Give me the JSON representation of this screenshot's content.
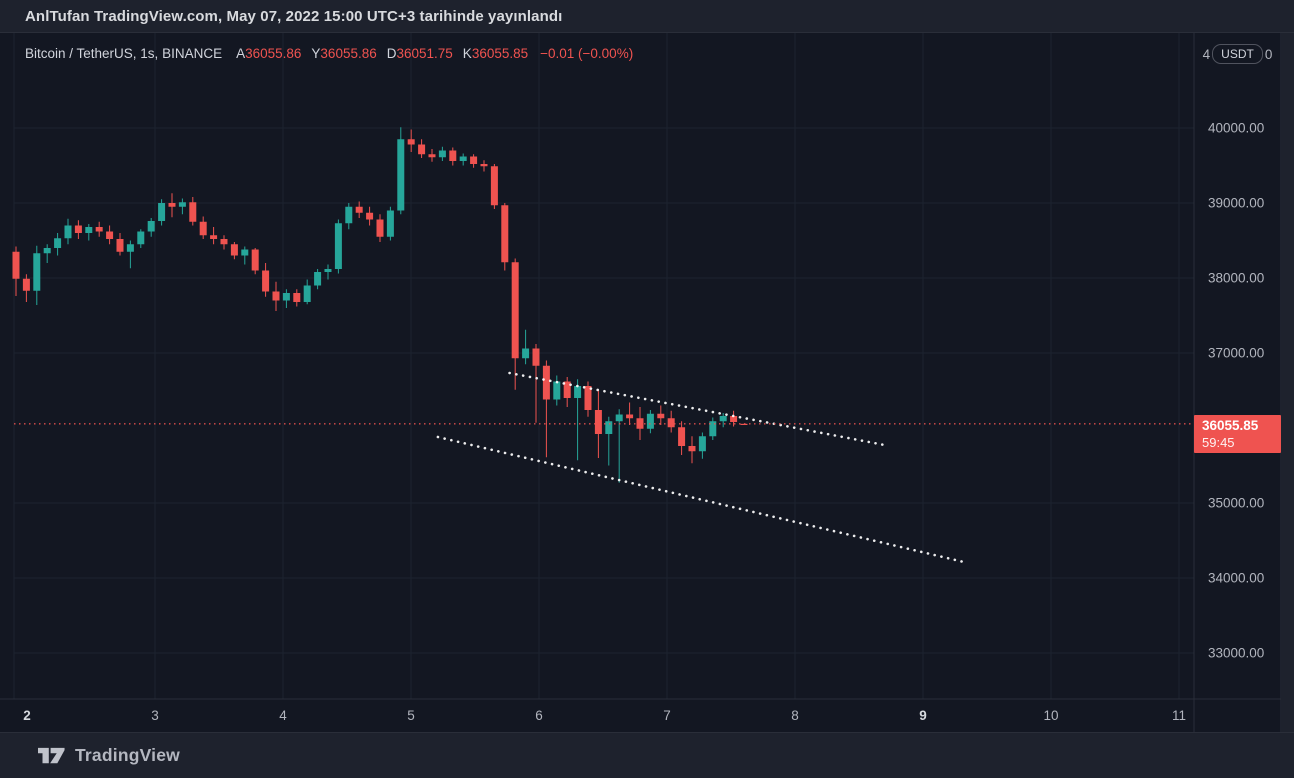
{
  "publish_bar": {
    "text": "AnlTufan TradingView.com, May 07, 2022 15:00 UTC+3 tarihinde yayınlandı"
  },
  "header": {
    "symbol": "Bitcoin / TetherUS, 1s, BINANCE",
    "ohlc": [
      {
        "label": "A",
        "value": "36055.86"
      },
      {
        "label": "Y",
        "value": "36055.86"
      },
      {
        "label": "D",
        "value": "36051.75"
      },
      {
        "label": "K",
        "value": "36055.85"
      }
    ],
    "change": "−0.01 (−0.00%)"
  },
  "price_scale": {
    "top_left_digit": "4",
    "currency_button_label": "USDT",
    "top_right_digit": "0",
    "ticks": [
      {
        "label": "40000.00",
        "price": 40000
      },
      {
        "label": "39000.00",
        "price": 39000
      },
      {
        "label": "38000.00",
        "price": 38000
      },
      {
        "label": "37000.00",
        "price": 37000
      },
      {
        "label": "35000.00",
        "price": 35000
      },
      {
        "label": "34000.00",
        "price": 34000
      },
      {
        "label": "33000.00",
        "price": 33000
      }
    ],
    "last_price_badge": {
      "price": "36055.85",
      "countdown": "59:45"
    }
  },
  "time_scale": {
    "ticks": [
      {
        "label": "2",
        "day": 2,
        "bold": true
      },
      {
        "label": "3",
        "day": 3,
        "bold": false
      },
      {
        "label": "4",
        "day": 4,
        "bold": false
      },
      {
        "label": "5",
        "day": 5,
        "bold": false
      },
      {
        "label": "6",
        "day": 6,
        "bold": false
      },
      {
        "label": "7",
        "day": 7,
        "bold": false
      },
      {
        "label": "8",
        "day": 8,
        "bold": false
      },
      {
        "label": "9",
        "day": 9,
        "bold": true
      },
      {
        "label": "10",
        "day": 10,
        "bold": false
      },
      {
        "label": "11",
        "day": 11,
        "bold": false
      }
    ]
  },
  "footer": {
    "brand": "TradingView"
  },
  "colors": {
    "up": "#26a69a",
    "down": "#ef5350",
    "badge": "#ef5350",
    "background": "#131722",
    "panel": "#1e222d",
    "grid": "#1d2330",
    "separator": "#2a2e39",
    "axis_text": "#b2b5be",
    "bright_text": "#d1d4dc",
    "trendline": "#ffffff"
  },
  "chart_data": {
    "type": "candlestick",
    "title": "Bitcoin / TetherUS, 1s, BINANCE",
    "pair": "Bitcoin / TetherUS",
    "interval": "1s",
    "exchange": "BINANCE",
    "x_axis": {
      "unit": "day of May 2022",
      "labels": [
        "2",
        "3",
        "4",
        "5",
        "6",
        "7",
        "8",
        "9",
        "10",
        "11"
      ]
    },
    "y_axis": {
      "ticks": [
        40000,
        39000,
        38000,
        37000,
        35000,
        34000,
        33000
      ],
      "visible_range": [
        32400,
        41300
      ]
    },
    "start_day": 1.914,
    "day_step": 0.08125,
    "candles": [
      [
        38350,
        38420,
        37760,
        37990
      ],
      [
        37990,
        38050,
        37680,
        37830
      ],
      [
        37830,
        38430,
        37640,
        38330
      ],
      [
        38330,
        38450,
        38200,
        38400
      ],
      [
        38400,
        38600,
        38300,
        38530
      ],
      [
        38530,
        38790,
        38450,
        38700
      ],
      [
        38700,
        38770,
        38520,
        38600
      ],
      [
        38600,
        38720,
        38500,
        38680
      ],
      [
        38680,
        38750,
        38550,
        38620
      ],
      [
        38620,
        38700,
        38450,
        38520
      ],
      [
        38520,
        38600,
        38300,
        38350
      ],
      [
        38350,
        38500,
        38130,
        38450
      ],
      [
        38450,
        38650,
        38400,
        38620
      ],
      [
        38620,
        38800,
        38550,
        38760
      ],
      [
        38760,
        39050,
        38700,
        39000
      ],
      [
        39000,
        39130,
        38810,
        38950
      ],
      [
        38950,
        39060,
        38850,
        39010
      ],
      [
        39010,
        39080,
        38700,
        38750
      ],
      [
        38750,
        38820,
        38520,
        38570
      ],
      [
        38570,
        38680,
        38450,
        38520
      ],
      [
        38520,
        38570,
        38380,
        38450
      ],
      [
        38450,
        38480,
        38250,
        38300
      ],
      [
        38300,
        38420,
        38180,
        38380
      ],
      [
        38380,
        38400,
        38050,
        38100
      ],
      [
        38100,
        38200,
        37750,
        37820
      ],
      [
        37820,
        37950,
        37560,
        37700
      ],
      [
        37700,
        37850,
        37600,
        37800
      ],
      [
        37800,
        37850,
        37620,
        37680
      ],
      [
        37680,
        37980,
        37650,
        37900
      ],
      [
        37900,
        38120,
        37850,
        38080
      ],
      [
        38080,
        38180,
        37980,
        38120
      ],
      [
        38120,
        38780,
        38060,
        38730
      ],
      [
        38730,
        39000,
        38650,
        38950
      ],
      [
        38950,
        39020,
        38800,
        38870
      ],
      [
        38870,
        38950,
        38700,
        38780
      ],
      [
        38780,
        38850,
        38480,
        38550
      ],
      [
        38550,
        38950,
        38500,
        38900
      ],
      [
        38900,
        40010,
        38850,
        39850
      ],
      [
        39850,
        39980,
        39680,
        39780
      ],
      [
        39780,
        39850,
        39600,
        39650
      ],
      [
        39650,
        39720,
        39550,
        39610
      ],
      [
        39610,
        39750,
        39560,
        39700
      ],
      [
        39700,
        39740,
        39500,
        39560
      ],
      [
        39560,
        39660,
        39500,
        39620
      ],
      [
        39620,
        39650,
        39470,
        39520
      ],
      [
        39520,
        39570,
        39420,
        39490
      ],
      [
        39490,
        39520,
        38920,
        38970
      ],
      [
        38970,
        39000,
        38100,
        38210
      ],
      [
        38210,
        38260,
        36510,
        36930
      ],
      [
        36930,
        37310,
        36850,
        37060
      ],
      [
        37060,
        37120,
        36070,
        36830
      ],
      [
        36830,
        36900,
        35610,
        36380
      ],
      [
        36380,
        36700,
        36300,
        36620
      ],
      [
        36620,
        36680,
        36280,
        36400
      ],
      [
        36400,
        36650,
        35570,
        36560
      ],
      [
        36560,
        36620,
        36150,
        36240
      ],
      [
        36240,
        36500,
        35600,
        35920
      ],
      [
        35920,
        36150,
        35500,
        36090
      ],
      [
        36090,
        36250,
        35270,
        36180
      ],
      [
        36180,
        36340,
        36040,
        36130
      ],
      [
        36130,
        36280,
        35840,
        35990
      ],
      [
        35990,
        36240,
        35930,
        36190
      ],
      [
        36190,
        36300,
        36040,
        36130
      ],
      [
        36130,
        36230,
        35940,
        36010
      ],
      [
        36010,
        36090,
        35640,
        35760
      ],
      [
        35760,
        35890,
        35530,
        35690
      ],
      [
        35690,
        35940,
        35590,
        35890
      ],
      [
        35890,
        36140,
        35840,
        36090
      ],
      [
        36090,
        36200,
        36010,
        36160
      ],
      [
        36160,
        36230,
        36020,
        36080
      ],
      [
        36055.86,
        36055.86,
        36051.75,
        36055.85
      ]
    ],
    "last_price": 36055.85,
    "price_line": {
      "price": 36055.85,
      "color": "#ef5350",
      "style": "dotted"
    },
    "trendlines": [
      {
        "from_day": 5.77,
        "from_price": 36733,
        "to_day": 8.7,
        "to_price": 35773,
        "style": "dotted",
        "color": "#ffffff"
      },
      {
        "from_day": 5.21,
        "from_price": 35880,
        "to_day": 9.32,
        "to_price": 34213,
        "style": "dotted",
        "color": "#ffffff"
      }
    ]
  }
}
